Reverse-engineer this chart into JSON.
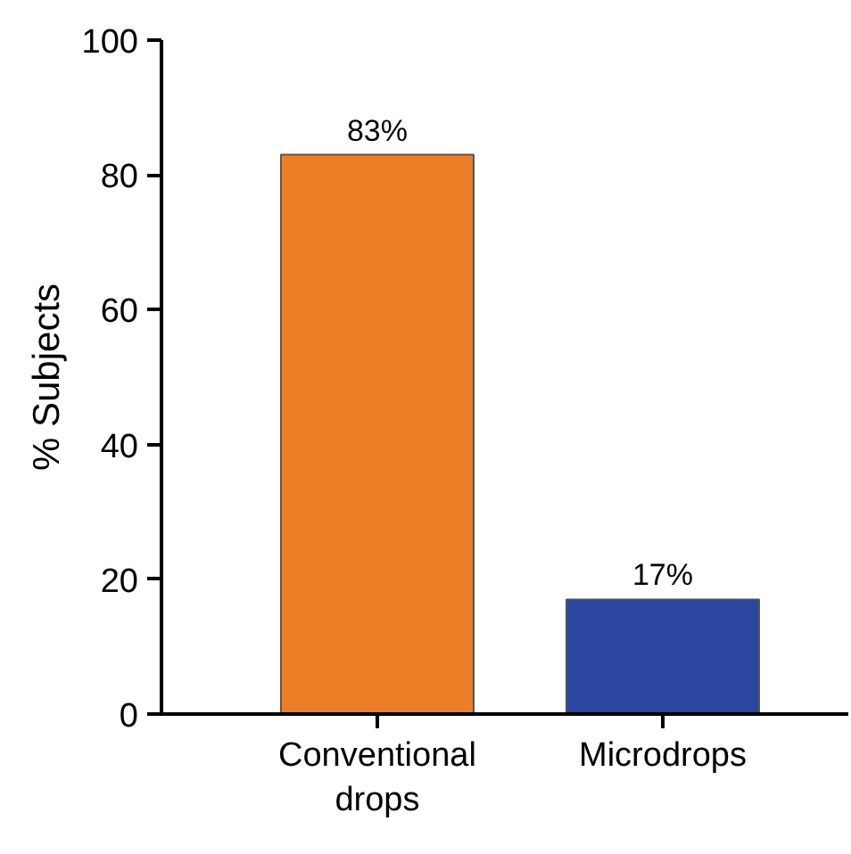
{
  "chart_data": {
    "type": "bar",
    "ylabel": "% Subjects",
    "categories": [
      "Conventional drops",
      "Microdrops"
    ],
    "values": [
      83,
      17
    ],
    "colors": [
      "#ed7d27",
      "#2a46a0"
    ],
    "value_labels": [
      "83%",
      "17%"
    ],
    "ylim": [
      0,
      100
    ],
    "yticks": [
      0,
      20,
      40,
      60,
      80,
      100
    ],
    "grid": false
  }
}
